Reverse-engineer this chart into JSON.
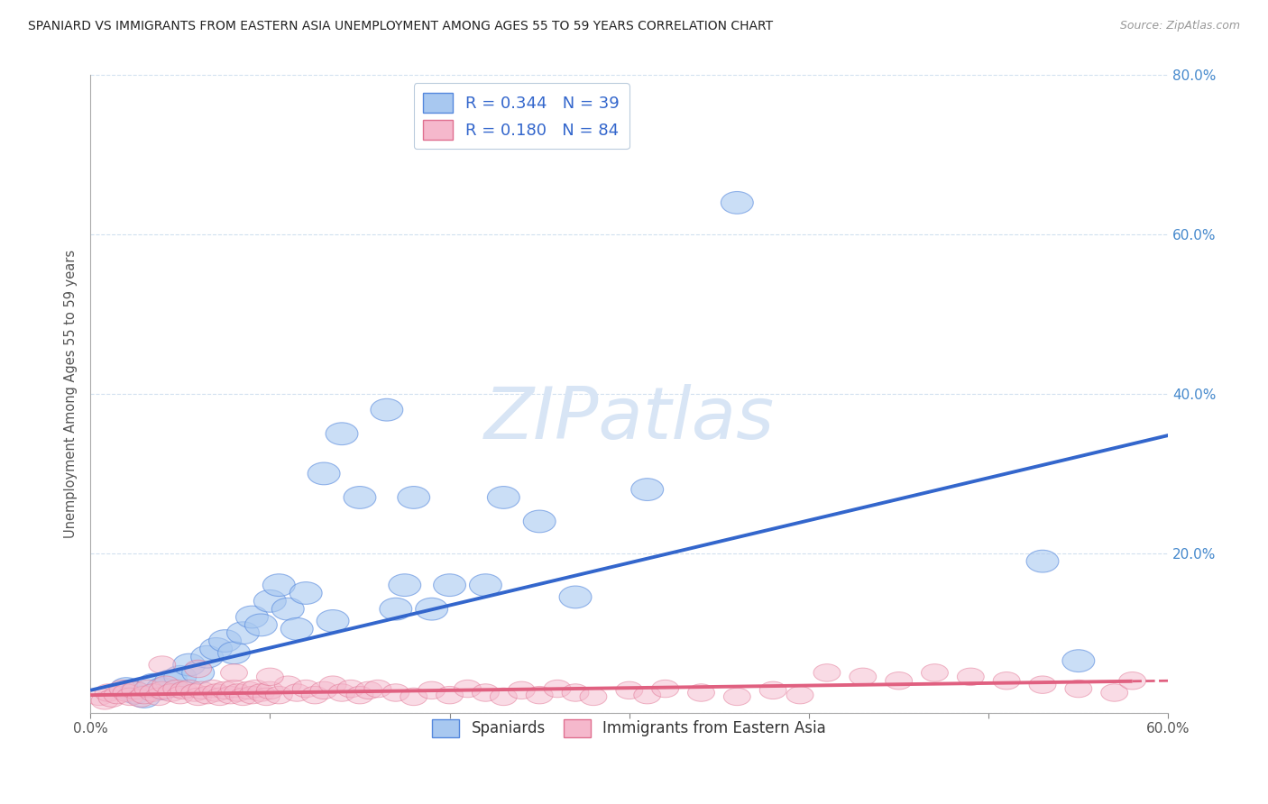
{
  "title": "SPANIARD VS IMMIGRANTS FROM EASTERN ASIA UNEMPLOYMENT AMONG AGES 55 TO 59 YEARS CORRELATION CHART",
  "source": "Source: ZipAtlas.com",
  "ylabel": "Unemployment Among Ages 55 to 59 years",
  "xlim": [
    0.0,
    0.6
  ],
  "ylim": [
    0.0,
    0.8
  ],
  "xticklabels_outer": [
    "0.0%",
    "60.0%"
  ],
  "yticklabels": [
    "",
    "20.0%",
    "40.0%",
    "60.0%",
    "80.0%"
  ],
  "ytick_vals": [
    0.0,
    0.2,
    0.4,
    0.6,
    0.8
  ],
  "xtick_vals": [
    0.0,
    0.1,
    0.2,
    0.3,
    0.4,
    0.5,
    0.6
  ],
  "legend_label1": "R = 0.344   N = 39",
  "legend_label2": "R = 0.180   N = 84",
  "color_sp_face": "#A8C8F0",
  "color_sp_edge": "#5588DD",
  "color_im_face": "#F5B8CC",
  "color_im_edge": "#E07090",
  "color_line_sp": "#3366CC",
  "color_line_im": "#E06080",
  "watermark": "ZIPatlas",
  "watermark_color": "#D8E5F5",
  "sp_x": [
    0.02,
    0.025,
    0.03,
    0.035,
    0.04,
    0.045,
    0.05,
    0.055,
    0.06,
    0.065,
    0.07,
    0.075,
    0.08,
    0.085,
    0.09,
    0.095,
    0.1,
    0.105,
    0.11,
    0.115,
    0.12,
    0.13,
    0.135,
    0.14,
    0.15,
    0.165,
    0.17,
    0.175,
    0.18,
    0.19,
    0.2,
    0.22,
    0.23,
    0.25,
    0.27,
    0.31,
    0.36,
    0.53,
    0.55
  ],
  "sp_y": [
    0.03,
    0.025,
    0.02,
    0.035,
    0.03,
    0.04,
    0.045,
    0.06,
    0.05,
    0.07,
    0.08,
    0.09,
    0.075,
    0.1,
    0.12,
    0.11,
    0.14,
    0.16,
    0.13,
    0.105,
    0.15,
    0.3,
    0.115,
    0.35,
    0.27,
    0.38,
    0.13,
    0.16,
    0.27,
    0.13,
    0.16,
    0.16,
    0.27,
    0.24,
    0.145,
    0.28,
    0.64,
    0.19,
    0.065
  ],
  "im_x": [
    0.005,
    0.008,
    0.01,
    0.012,
    0.015,
    0.018,
    0.02,
    0.022,
    0.025,
    0.028,
    0.03,
    0.032,
    0.035,
    0.038,
    0.04,
    0.042,
    0.045,
    0.048,
    0.05,
    0.052,
    0.055,
    0.058,
    0.06,
    0.062,
    0.065,
    0.068,
    0.07,
    0.072,
    0.075,
    0.078,
    0.08,
    0.082,
    0.085,
    0.088,
    0.09,
    0.092,
    0.095,
    0.098,
    0.1,
    0.105,
    0.11,
    0.115,
    0.12,
    0.125,
    0.13,
    0.135,
    0.14,
    0.145,
    0.15,
    0.155,
    0.16,
    0.17,
    0.18,
    0.19,
    0.2,
    0.21,
    0.22,
    0.23,
    0.24,
    0.25,
    0.26,
    0.27,
    0.28,
    0.3,
    0.31,
    0.32,
    0.34,
    0.36,
    0.38,
    0.395,
    0.41,
    0.43,
    0.45,
    0.47,
    0.49,
    0.51,
    0.53,
    0.55,
    0.57,
    0.58,
    0.04,
    0.06,
    0.08,
    0.1
  ],
  "im_y": [
    0.02,
    0.015,
    0.025,
    0.018,
    0.022,
    0.03,
    0.025,
    0.02,
    0.028,
    0.018,
    0.022,
    0.03,
    0.025,
    0.02,
    0.028,
    0.035,
    0.025,
    0.03,
    0.022,
    0.028,
    0.03,
    0.025,
    0.02,
    0.028,
    0.022,
    0.03,
    0.025,
    0.02,
    0.028,
    0.022,
    0.03,
    0.025,
    0.02,
    0.028,
    0.022,
    0.03,
    0.025,
    0.02,
    0.028,
    0.022,
    0.035,
    0.025,
    0.03,
    0.022,
    0.028,
    0.035,
    0.025,
    0.03,
    0.022,
    0.028,
    0.03,
    0.025,
    0.02,
    0.028,
    0.022,
    0.03,
    0.025,
    0.02,
    0.028,
    0.022,
    0.03,
    0.025,
    0.02,
    0.028,
    0.022,
    0.03,
    0.025,
    0.02,
    0.028,
    0.022,
    0.05,
    0.045,
    0.04,
    0.05,
    0.045,
    0.04,
    0.035,
    0.03,
    0.025,
    0.04,
    0.06,
    0.055,
    0.05,
    0.045
  ]
}
